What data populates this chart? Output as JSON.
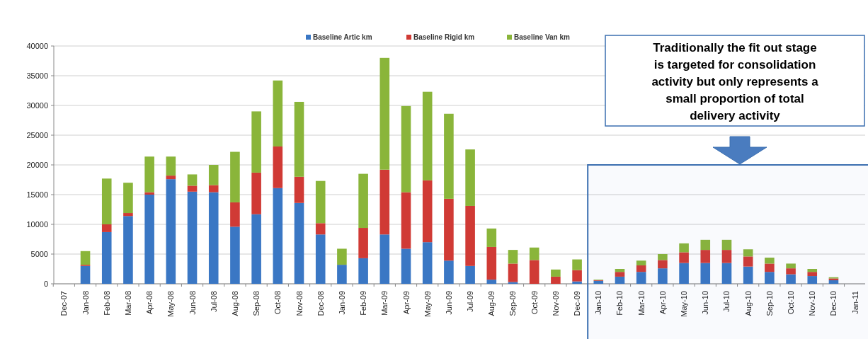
{
  "chart_data": {
    "type": "bar",
    "stacked": true,
    "grid": "y",
    "legend": "top",
    "categories": [
      "Dec-07",
      "Jan-08",
      "Feb-08",
      "Mar-08",
      "Apr-08",
      "May-08",
      "Jun-08",
      "Jul-08",
      "Aug-08",
      "Sep-08",
      "Oct-08",
      "Nov-08",
      "Dec-08",
      "Jan-09",
      "Feb-09",
      "Mar-09",
      "Apr-09",
      "May-09",
      "Jun-09",
      "Jul-09",
      "Aug-09",
      "Sep-09",
      "Oct-09",
      "Nov-09",
      "Dec-09",
      "Jan-10",
      "Feb-10",
      "Mar-10",
      "Apr-10",
      "May-10",
      "Jun-10",
      "Jul-10",
      "Aug-10",
      "Sep-10",
      "Oct-10",
      "Nov-10",
      "Dec-10",
      "Jan-11"
    ],
    "series": [
      {
        "name": "Baseline Artic km",
        "color": "#3a77c4",
        "values": [
          null,
          3000,
          8700,
          11400,
          15000,
          17600,
          15500,
          15400,
          9600,
          11700,
          16100,
          13600,
          8300,
          3200,
          4300,
          8300,
          5900,
          7000,
          3900,
          3000,
          700,
          300,
          0,
          0,
          400,
          500,
          1200,
          2000,
          2600,
          3500,
          3500,
          3500,
          2900,
          2000,
          1600,
          1300,
          600,
          null
        ]
      },
      {
        "name": "Baseline Rigid km",
        "color": "#d03a35",
        "values": [
          null,
          200,
          1300,
          500,
          400,
          600,
          1000,
          1200,
          4100,
          7000,
          7000,
          4400,
          1900,
          0,
          5100,
          10900,
          9500,
          10400,
          10400,
          10100,
          5500,
          3100,
          4000,
          1200,
          1900,
          100,
          800,
          1100,
          1400,
          1800,
          2200,
          2200,
          1700,
          1400,
          1000,
          700,
          300,
          null
        ]
      },
      {
        "name": "Baseline Van km",
        "color": "#8ab53a",
        "values": [
          null,
          2300,
          7700,
          5100,
          6000,
          3200,
          1900,
          3400,
          8500,
          10300,
          11100,
          12600,
          7100,
          2700,
          9100,
          18800,
          14500,
          14900,
          14300,
          9500,
          3100,
          2300,
          2100,
          1200,
          1800,
          100,
          500,
          800,
          1000,
          1500,
          1700,
          1700,
          1200,
          1000,
          800,
          500,
          200,
          null
        ]
      }
    ],
    "ylim": [
      0,
      40000
    ],
    "yticks": [
      0,
      5000,
      10000,
      15000,
      20000,
      25000,
      30000,
      35000,
      40000
    ],
    "bands": [
      {
        "axis": "x",
        "from": "Jan-10",
        "to": "Jan-11",
        "color": "#3b6fb0"
      }
    ],
    "annotations": [
      "Traditionally the fit out stage is targeted for consolidation activity but only represents a small proportion of total delivery activity"
    ]
  }
}
